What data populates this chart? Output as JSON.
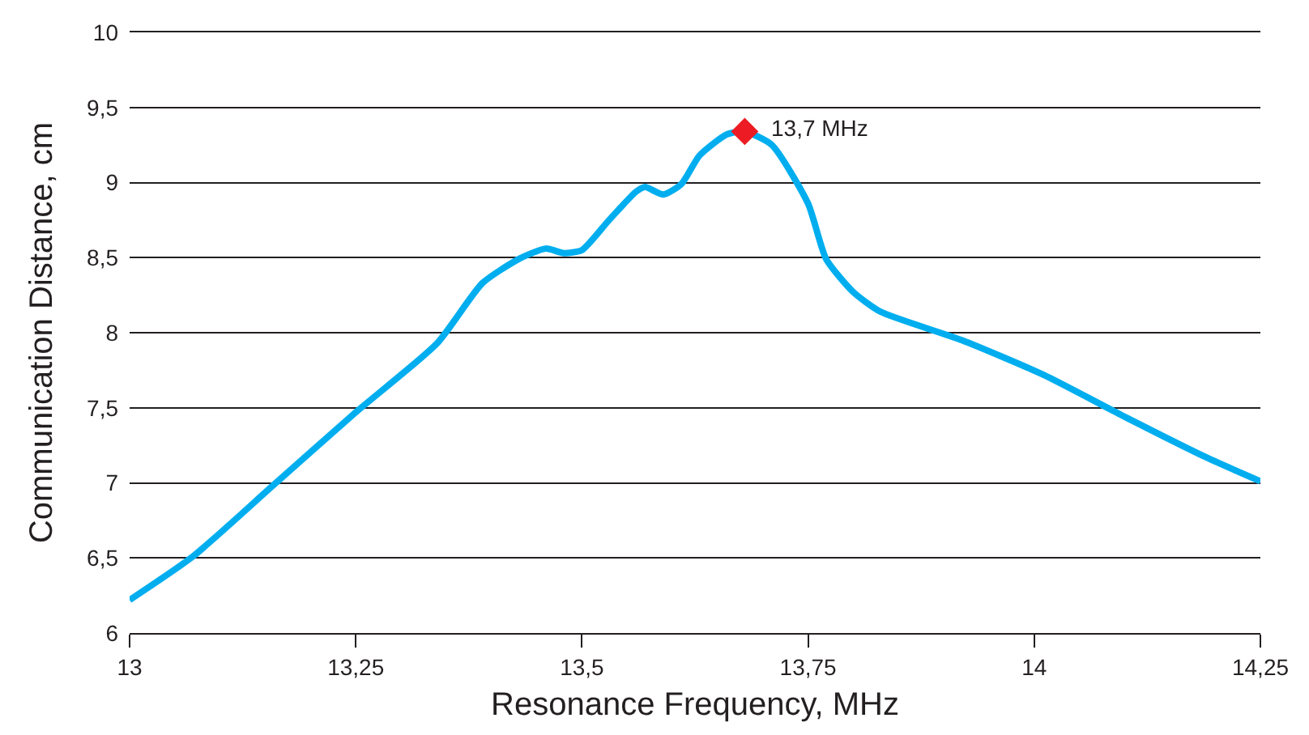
{
  "chart_data": {
    "type": "line",
    "xlabel": "Resonance Frequency, MHz",
    "ylabel": "Communication Distance, cm",
    "xlim": [
      13,
      14.25
    ],
    "ylim": [
      6,
      10
    ],
    "xticks": [
      13,
      {
        "value": 13.25,
        "label": "13,25"
      },
      {
        "value": 13.5,
        "label": "13,5"
      },
      {
        "value": 13.75,
        "label": "13,75"
      },
      14,
      {
        "value": 14.25,
        "label": "14,25"
      }
    ],
    "yticks": [
      6,
      {
        "value": 6.5,
        "label": "6,5"
      },
      7,
      {
        "value": 7.5,
        "label": "7,5"
      },
      8,
      {
        "value": 8.5,
        "label": "8,5"
      },
      9,
      {
        "value": 9.5,
        "label": "9,5"
      },
      10
    ],
    "grid": "y",
    "line_style": "solid",
    "marker": "none",
    "series": [
      {
        "color": "#00aeef",
        "x": [
          13,
          13.07,
          13.16,
          13.25,
          13.34,
          13.39,
          13.43,
          13.46,
          13.48,
          13.5,
          13.53,
          13.56,
          13.57,
          13.59,
          13.61,
          13.63,
          13.66,
          13.68,
          13.71,
          13.75,
          13.77,
          13.8,
          13.83,
          13.92,
          14.01,
          14.1,
          14.19,
          14.25
        ],
        "values": [
          6.22,
          6.51,
          6.99,
          7.47,
          7.93,
          8.33,
          8.49,
          8.56,
          8.53,
          8.55,
          8.75,
          8.94,
          8.97,
          8.92,
          8.99,
          9.18,
          9.32,
          9.34,
          9.25,
          8.86,
          8.49,
          8.27,
          8.14,
          7.95,
          7.72,
          7.44,
          7.17,
          7.01
        ]
      },
      {
        "type": "scatter",
        "marker": "diamond",
        "color": "#ed1c24",
        "x": [
          13.68
        ],
        "values": [
          9.34
        ]
      }
    ],
    "annotations": [
      {
        "text": "13,7 MHz",
        "x": 13.68,
        "y": 9.34
      }
    ]
  }
}
